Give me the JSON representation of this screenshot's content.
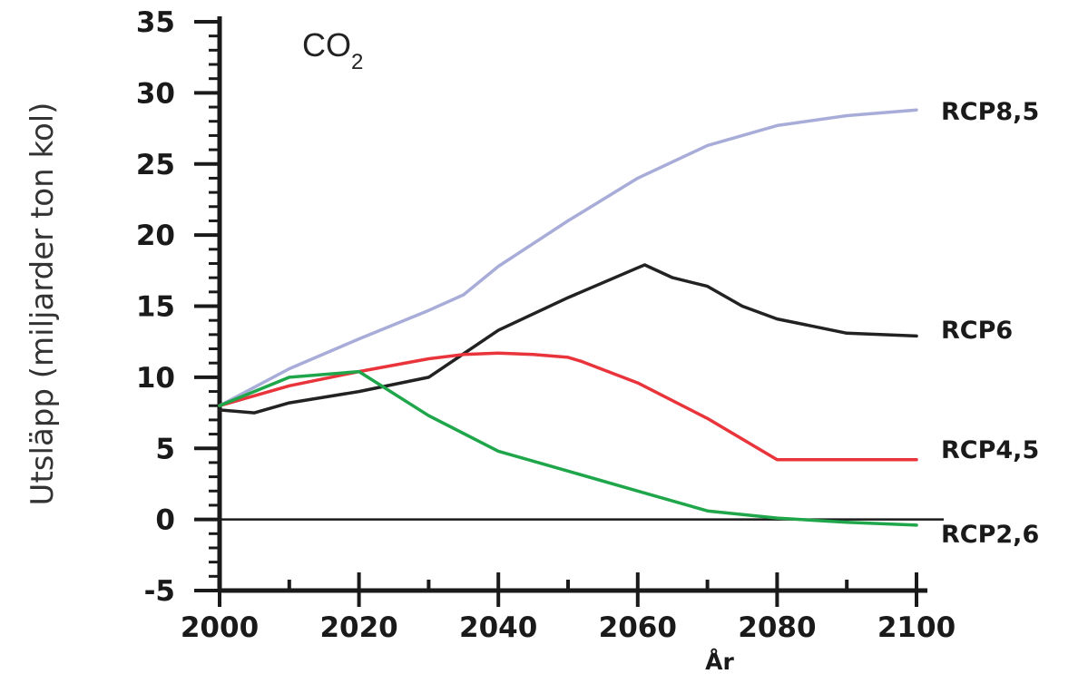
{
  "chart_data": {
    "type": "line",
    "title": "CO",
    "title_subscript": "2",
    "xlabel": "År",
    "ylabel": "Utsläpp (miljarder ton kol)",
    "xlim": [
      2000,
      2100
    ],
    "ylim": [
      -5,
      35
    ],
    "xticks": [
      2000,
      2020,
      2040,
      2060,
      2080,
      2100
    ],
    "yticks": [
      -5,
      0,
      5,
      10,
      15,
      20,
      25,
      30,
      35
    ],
    "grid": false,
    "legend": "labels at right end of each line",
    "series": [
      {
        "name": "RCP8,5",
        "color": "#a8acd8",
        "x": [
          2000,
          2010,
          2020,
          2030,
          2035,
          2040,
          2050,
          2060,
          2070,
          2080,
          2090,
          2100
        ],
        "y": [
          8.0,
          10.6,
          12.7,
          14.7,
          15.8,
          17.8,
          21.0,
          24.0,
          26.3,
          27.7,
          28.4,
          28.8
        ]
      },
      {
        "name": "RCP6",
        "color": "#222222",
        "x": [
          2000,
          2005,
          2010,
          2020,
          2030,
          2040,
          2050,
          2060,
          2061,
          2065,
          2070,
          2075,
          2080,
          2090,
          2100
        ],
        "y": [
          7.7,
          7.5,
          8.2,
          9.0,
          10.0,
          13.3,
          15.6,
          17.7,
          17.9,
          17.0,
          16.4,
          15.0,
          14.1,
          13.1,
          12.9
        ]
      },
      {
        "name": "RCP4,5",
        "color": "#e8343a",
        "x": [
          2000,
          2010,
          2020,
          2030,
          2035,
          2040,
          2045,
          2050,
          2052,
          2060,
          2070,
          2080,
          2090,
          2100
        ],
        "y": [
          8.0,
          9.4,
          10.4,
          11.3,
          11.6,
          11.7,
          11.6,
          11.4,
          11.1,
          9.6,
          7.1,
          4.2,
          4.2,
          4.2
        ]
      },
      {
        "name": "RCP2,6",
        "color": "#1fa64a",
        "x": [
          2000,
          2010,
          2020,
          2030,
          2040,
          2050,
          2060,
          2070,
          2080,
          2090,
          2100
        ],
        "y": [
          8.0,
          10.0,
          10.4,
          7.3,
          4.8,
          3.4,
          2.0,
          0.6,
          0.1,
          -0.2,
          -0.4
        ]
      }
    ]
  }
}
